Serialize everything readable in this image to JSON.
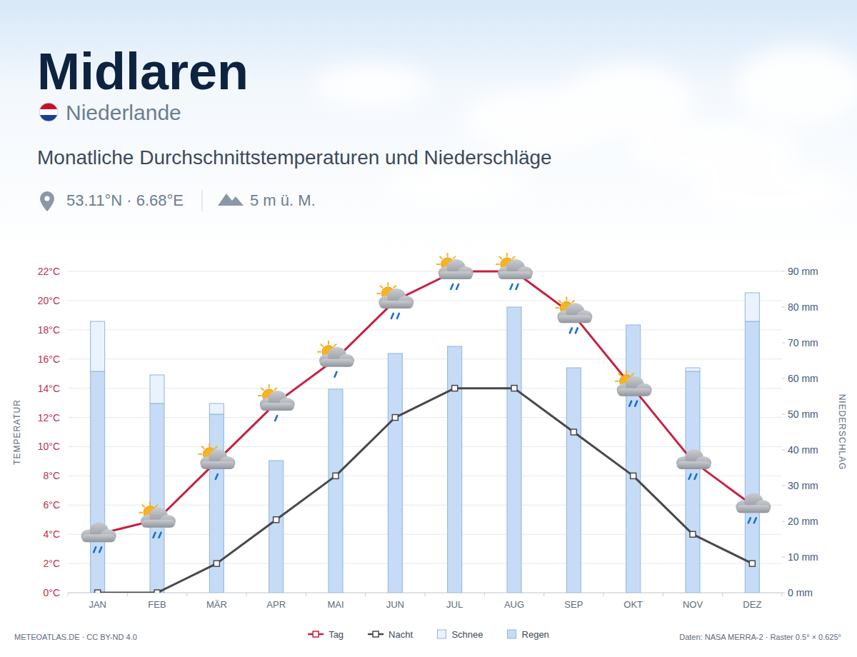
{
  "chart_data": {
    "type": "bar",
    "title": "Midlaren",
    "subtitle": "Monatliche Durchschnittstemperaturen und Niederschläge",
    "ylabel": "TEMPERATUR",
    "y2label": "NIEDERSCHLAG",
    "categories": [
      "JAN",
      "FEB",
      "MÄR",
      "APR",
      "MAI",
      "JUN",
      "JUL",
      "AUG",
      "SEP",
      "OKT",
      "NOV",
      "DEZ"
    ],
    "series": [
      {
        "name": "Tag",
        "type": "line",
        "color": "#c8203f",
        "marker": "square",
        "values": [
          4,
          5,
          9,
          13,
          16,
          20,
          22,
          22,
          19,
          14,
          9,
          6
        ]
      },
      {
        "name": "Nacht",
        "type": "line",
        "color": "#48484c",
        "marker": "square",
        "values": [
          0,
          0,
          2,
          5,
          8,
          12,
          14,
          14,
          11,
          8,
          4,
          2
        ]
      },
      {
        "name": "Schnee",
        "type": "bar",
        "axis": "y2",
        "color": "#eaf3fd",
        "values": [
          14,
          8,
          3,
          0,
          0,
          0,
          0,
          0,
          0,
          0,
          1,
          8
        ]
      },
      {
        "name": "Regen",
        "type": "bar",
        "axis": "y2",
        "color": "#c6dcf6",
        "values": [
          62,
          53,
          50,
          37,
          57,
          67,
          69,
          80,
          63,
          75,
          62,
          76
        ]
      }
    ],
    "stacked": true,
    "ylim": [
      0,
      22
    ],
    "yticks": [
      {
        "value": 0,
        "label": "0°C"
      },
      {
        "value": 2,
        "label": "2°C"
      },
      {
        "value": 4,
        "label": "4°C"
      },
      {
        "value": 6,
        "label": "6°C"
      },
      {
        "value": 8,
        "label": "8°C"
      },
      {
        "value": 10,
        "label": "10°C"
      },
      {
        "value": 12,
        "label": "12°C"
      },
      {
        "value": 14,
        "label": "14°C"
      },
      {
        "value": 16,
        "label": "16°C"
      },
      {
        "value": 18,
        "label": "18°C"
      },
      {
        "value": 20,
        "label": "20°C"
      },
      {
        "value": 22,
        "label": "22°C"
      }
    ],
    "y2lim": [
      0,
      90
    ],
    "y2ticks": [
      {
        "value": 0,
        "label": "0 mm"
      },
      {
        "value": 10,
        "label": "10 mm"
      },
      {
        "value": 20,
        "label": "20 mm"
      },
      {
        "value": 30,
        "label": "30 mm"
      },
      {
        "value": 40,
        "label": "40 mm"
      },
      {
        "value": 50,
        "label": "50 mm"
      },
      {
        "value": 60,
        "label": "60 mm"
      },
      {
        "value": 70,
        "label": "70 mm"
      },
      {
        "value": 80,
        "label": "80 mm"
      },
      {
        "value": 90,
        "label": "90 mm"
      }
    ],
    "grid": true,
    "legend": "bottom"
  },
  "header": {
    "country": "Niederlande",
    "coordinates": "53.11°N · 6.68°E",
    "elevation": "5 m ü. M."
  },
  "footer": {
    "credit": "METEOATLAS.DE · CC BY-ND 4.0",
    "source": "Daten: NASA MERRA-2 · Raster 0.5° × 0.625°"
  }
}
